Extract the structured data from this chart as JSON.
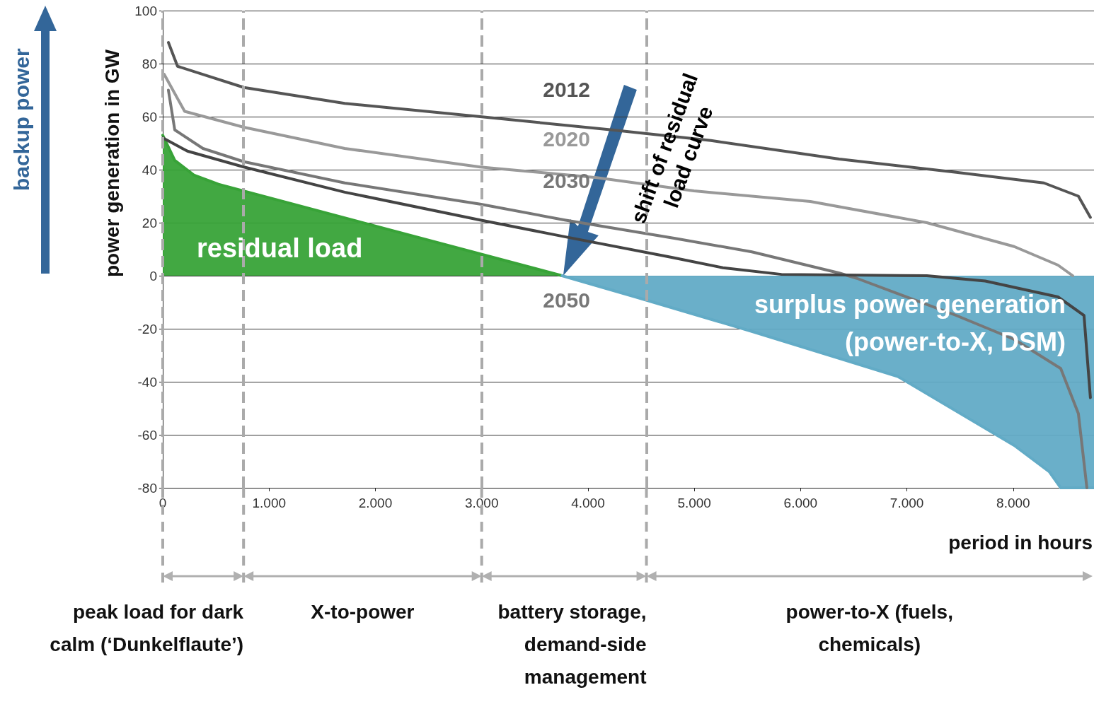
{
  "chart_data": {
    "type": "line",
    "xlabel": "period in hours",
    "ylabel": "power generation in GW",
    "xlim": [
      0,
      8760
    ],
    "ylim": [
      -80,
      100
    ],
    "xticks": [
      0,
      {
        "value": 1000,
        "label": "1.000"
      },
      {
        "value": 2000,
        "label": "2.000"
      },
      {
        "value": 3000,
        "label": "3.000"
      },
      {
        "value": 4000,
        "label": "4.000"
      },
      {
        "value": 5000,
        "label": "5.000"
      },
      {
        "value": 6000,
        "label": "6.000"
      },
      {
        "value": 7000,
        "label": "7.000"
      },
      {
        "value": 8000,
        "label": "8.000"
      }
    ],
    "yticks": [
      -80,
      -60,
      -40,
      -20,
      0,
      20,
      40,
      60,
      80,
      100
    ],
    "grid": "y",
    "series": [
      {
        "name": "2012",
        "color": "#555555",
        "x": [
          53,
          139,
          763,
          1712,
          2986,
          4227,
          5156,
          6364,
          7465,
          8288,
          8613,
          8726
        ],
        "values": [
          88,
          79,
          71,
          65,
          60,
          55,
          51,
          44,
          39,
          35,
          30,
          22
        ]
      },
      {
        "name": "2020",
        "color": "#999999",
        "x": [
          13,
          206,
          763,
          1712,
          2986,
          4081,
          4997,
          6092,
          7187,
          8009,
          8421,
          8560
        ],
        "values": [
          76,
          62,
          56,
          48,
          41,
          37,
          32,
          28,
          20,
          11,
          4,
          0
        ]
      },
      {
        "name": "2030",
        "color": "#777777",
        "x": [
          53,
          113,
          378,
          763,
          1712,
          2986,
          3782,
          4831,
          5541,
          6364,
          6530,
          7465,
          8009,
          8447,
          8613,
          8693
        ],
        "values": [
          70,
          55,
          48,
          43,
          35,
          27,
          21,
          14,
          9,
          1,
          -1,
          -15,
          -24,
          -35,
          -52,
          -80
        ]
      },
      {
        "color": "#444444",
        "x": [
          0,
          232,
          763,
          1712,
          2986,
          3782,
          4778,
          5269,
          5820,
          7187,
          7737,
          8421,
          8666,
          8726
        ],
        "values": [
          52,
          47,
          41,
          31.5,
          21,
          14.7,
          7,
          3,
          0.5,
          0,
          -2,
          -8,
          -15,
          -46
        ]
      },
      {
        "type": "area",
        "name": "residual load",
        "color": "#38a338",
        "x": [
          0,
          113,
          292,
          524,
          3756
        ],
        "values": [
          53,
          43.5,
          38,
          34.5,
          0
        ]
      },
      {
        "type": "area",
        "name": "surplus power generation (power-to-X, DSM)",
        "color": "#62abc6",
        "x": [
          3756,
          4446,
          5541,
          6914,
          8009,
          8341,
          8447,
          8760
        ],
        "values": [
          0,
          -8,
          -21,
          -38,
          -64,
          -74,
          -80,
          -80
        ]
      }
    ],
    "ref_lines": [
      {
        "axis": "x",
        "value": 0,
        "color": "#aaaaaa",
        "line_style": "dashed"
      },
      {
        "axis": "x",
        "value": 760,
        "color": "#aaaaaa",
        "line_style": "dashed"
      },
      {
        "axis": "x",
        "value": 3000,
        "color": "#aaaaaa",
        "line_style": "dashed"
      },
      {
        "axis": "x",
        "value": 4550,
        "color": "#aaaaaa",
        "line_style": "dashed"
      }
    ],
    "annotations": [
      "backup power",
      "2050",
      "shift of residual load curve",
      "peak load for dark calm (‘Dunkelflaute’)",
      "X-to-power",
      "battery storage, demand-side management",
      "power-to-X (fuels, chemicals)"
    ]
  }
}
